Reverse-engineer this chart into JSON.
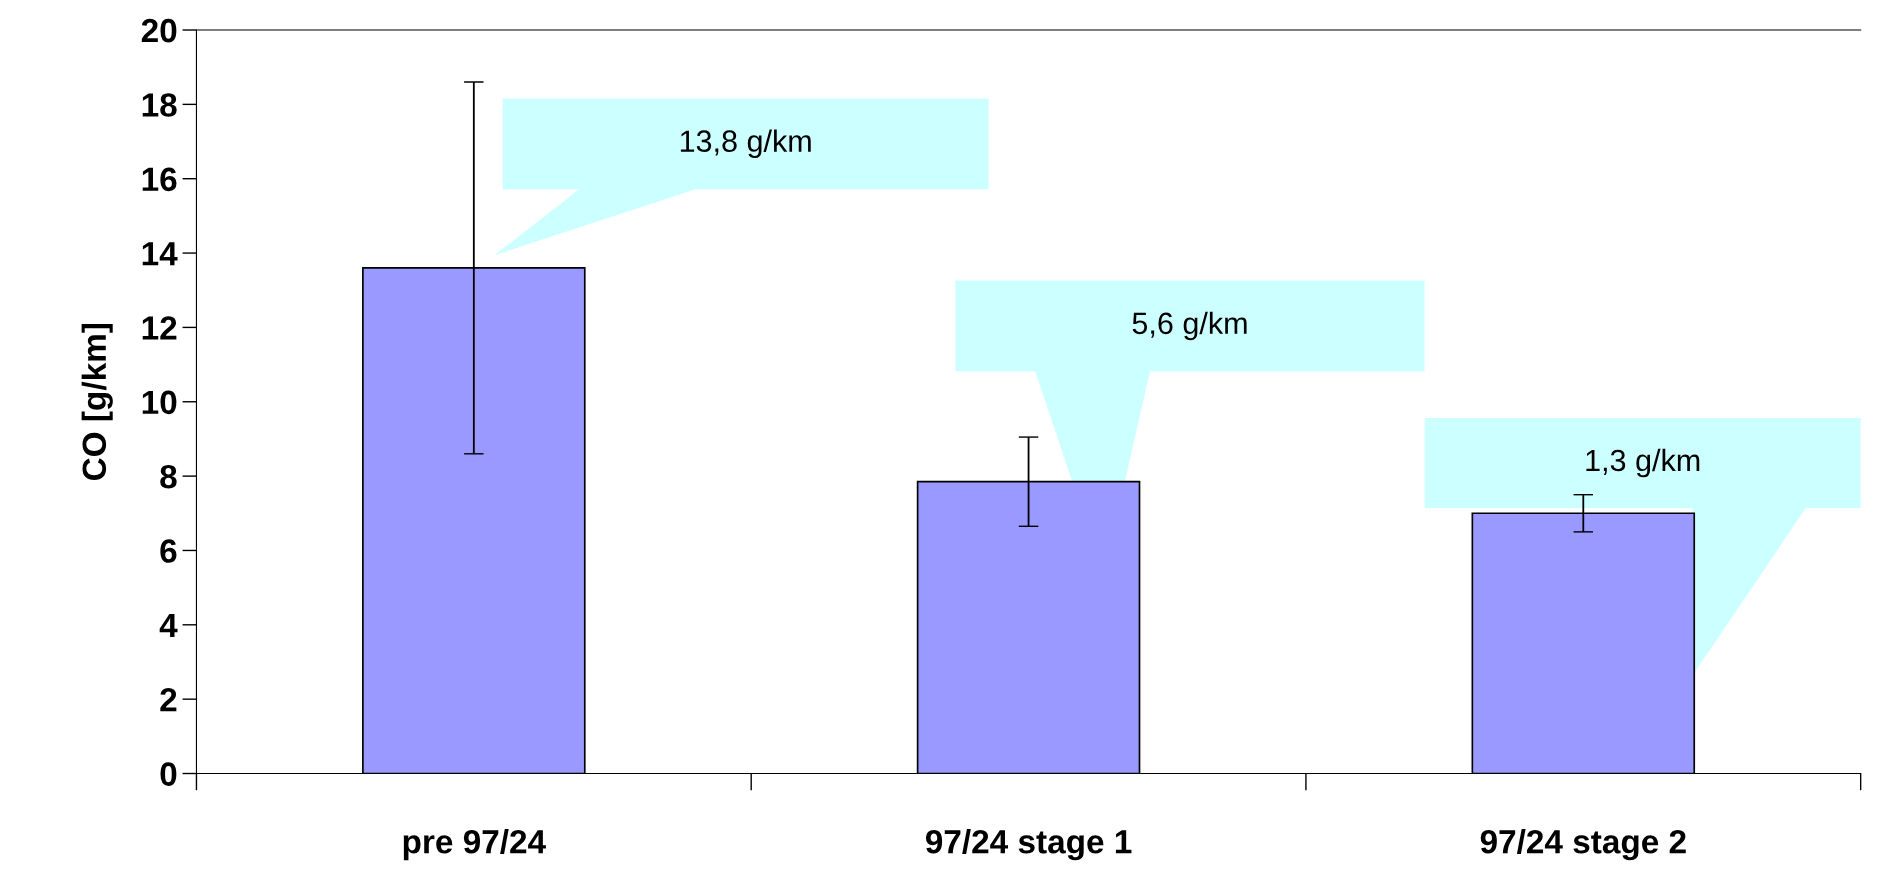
{
  "chart_data": {
    "type": "bar",
    "ylabel": "CO [g/km]",
    "categories": [
      "pre 97/24",
      "97/24 stage 1",
      "97/24 stage 2"
    ],
    "values": [
      13.6,
      7.85,
      7.0
    ],
    "color": "#9999ff",
    "errors": [
      5.0,
      1.2,
      0.5
    ],
    "ylim": [
      0,
      20
    ],
    "yticks": [
      0,
      2,
      4,
      6,
      8,
      10,
      12,
      14,
      16,
      18,
      20
    ],
    "grid": false,
    "legend": false,
    "annotations": [
      "13,8 g/km",
      "5,6 g/km",
      "1,3 g/km"
    ]
  }
}
